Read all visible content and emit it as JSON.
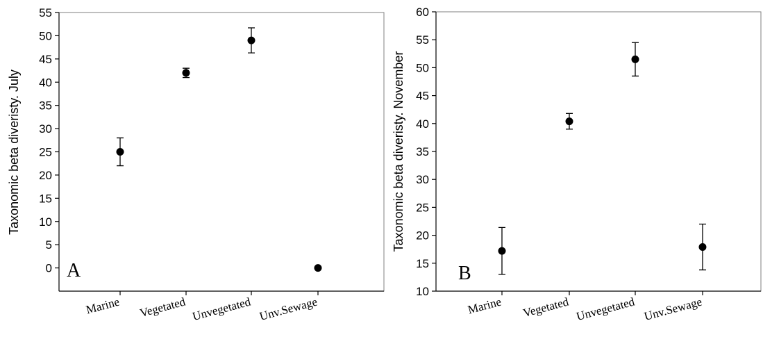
{
  "chart_data": [
    {
      "type": "scatter",
      "panel_label": "A",
      "ylabel": "Taxonomic beta diveristy. July",
      "ylim": [
        -5,
        55
      ],
      "yticks": [
        0,
        5,
        10,
        15,
        20,
        25,
        30,
        35,
        40,
        45,
        50,
        55
      ],
      "categories": [
        "Marine",
        "Vegetated",
        "Unvegetated",
        "Unv.Sewage"
      ],
      "values": [
        25,
        42,
        49,
        0
      ],
      "error": [
        3,
        1,
        2.7,
        0
      ],
      "grid": false
    },
    {
      "type": "scatter",
      "panel_label": "B",
      "ylabel": "Taxonomic beta diveristy. November",
      "ylim": [
        10,
        60
      ],
      "yticks": [
        10,
        15,
        20,
        25,
        30,
        35,
        40,
        45,
        50,
        55,
        60
      ],
      "categories": [
        "Marine",
        "Vegetated",
        "Unvegetated",
        "Unv.Sewage"
      ],
      "values": [
        17.2,
        40.4,
        51.5,
        17.9
      ],
      "error": [
        4.2,
        1.4,
        3,
        4.1
      ],
      "grid": false
    }
  ]
}
